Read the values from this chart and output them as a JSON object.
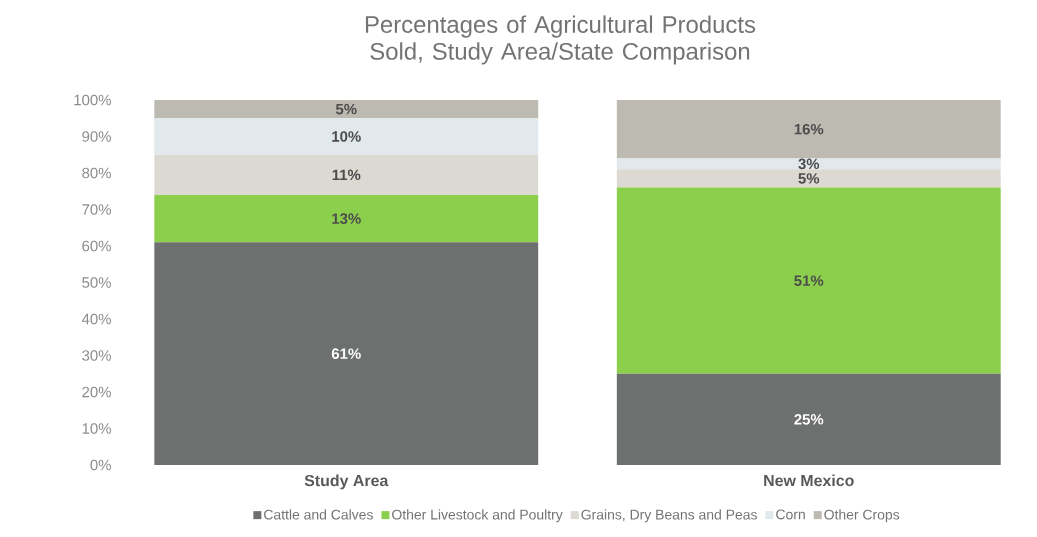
{
  "chart_data": {
    "type": "bar",
    "stacked": true,
    "title": "Percentages of Agricultural Products Sold, Study Area/State Comparison",
    "categories": [
      "Study Area",
      "New Mexico"
    ],
    "series": [
      {
        "name": "Cattle and Calves",
        "color": "#6e7070",
        "values": [
          61,
          25
        ],
        "value_labels": [
          "61%",
          "25%"
        ]
      },
      {
        "name": "Other Livestock and Poultry",
        "color": "#8ccf4d",
        "values": [
          13,
          51
        ],
        "value_labels": [
          "13%",
          "51%"
        ]
      },
      {
        "name": "Grains, Dry Beans and Peas",
        "color": "#dcd9d2",
        "values": [
          11,
          5
        ],
        "value_labels": [
          "11%",
          "5%"
        ]
      },
      {
        "name": "Corn",
        "color": "#e1e9ec",
        "values": [
          10,
          3
        ],
        "value_labels": [
          "10%",
          "3%"
        ]
      },
      {
        "name": "Other Crops",
        "color": "#bdbab2",
        "values": [
          5,
          16
        ],
        "value_labels": [
          "5%",
          "16%"
        ]
      }
    ],
    "ylim": [
      0,
      100
    ],
    "yticks": [
      {
        "value": 0,
        "label": "0%"
      },
      {
        "value": 10,
        "label": "10%"
      },
      {
        "value": 20,
        "label": "20%"
      },
      {
        "value": 30,
        "label": "30%"
      },
      {
        "value": 40,
        "label": "40%"
      },
      {
        "value": 50,
        "label": "50%"
      },
      {
        "value": 60,
        "label": "60%"
      },
      {
        "value": 70,
        "label": "70%"
      },
      {
        "value": 80,
        "label": "80%"
      },
      {
        "value": 90,
        "label": "90%"
      },
      {
        "value": 100,
        "label": "100%"
      }
    ],
    "grid": false,
    "legend": "bottom"
  }
}
